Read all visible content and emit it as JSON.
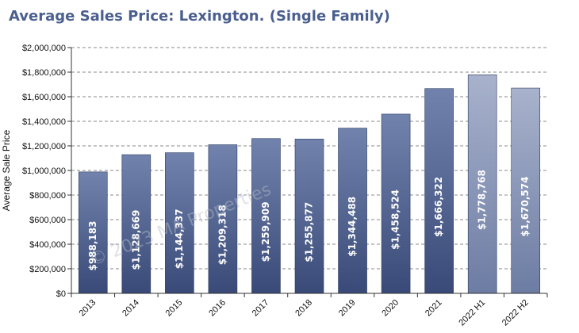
{
  "chart_data": {
    "type": "bar",
    "title": "Average Sales Price: Lexington. (Single Family)",
    "ylabel": "Average Sale Price",
    "xlabel": "",
    "ylim": [
      0,
      2000000
    ],
    "y_ticks": [
      "$0",
      "$200,000",
      "$400,000",
      "$600,000",
      "$800,000",
      "$1,000,000",
      "$1,200,000",
      "$1,400,000",
      "$1,600,000",
      "$1,800,000",
      "$2,000,000"
    ],
    "y_tick_values": [
      0,
      200000,
      400000,
      600000,
      800000,
      1000000,
      1200000,
      1400000,
      1600000,
      1800000,
      2000000
    ],
    "grid": true,
    "categories": [
      "2013",
      "2014",
      "2015",
      "2016",
      "2017",
      "2018",
      "2019",
      "2020",
      "2021",
      "2022 H1",
      "2022 H2"
    ],
    "values": [
      988183,
      1128669,
      1144337,
      1209318,
      1259909,
      1255877,
      1344488,
      1458524,
      1666322,
      1778768,
      1670574
    ],
    "data_labels": [
      "$988,183",
      "$1,128,669",
      "$1,144,337",
      "$1,209,318",
      "$1,259,909",
      "$1,255,877",
      "$1,344,488",
      "$1,458,524",
      "$1,666,322",
      "$1,778,768",
      "$1,670,574"
    ],
    "watermark": "© 2023 MA Properties",
    "colors": {
      "bar_top": "#7183ad",
      "bar_bottom": "#3a4a78",
      "bar_light_top": "#a8b2cc",
      "bar_light_bottom": "#6d7ca3",
      "title": "#4a5f8f",
      "grid": "#888888"
    }
  }
}
